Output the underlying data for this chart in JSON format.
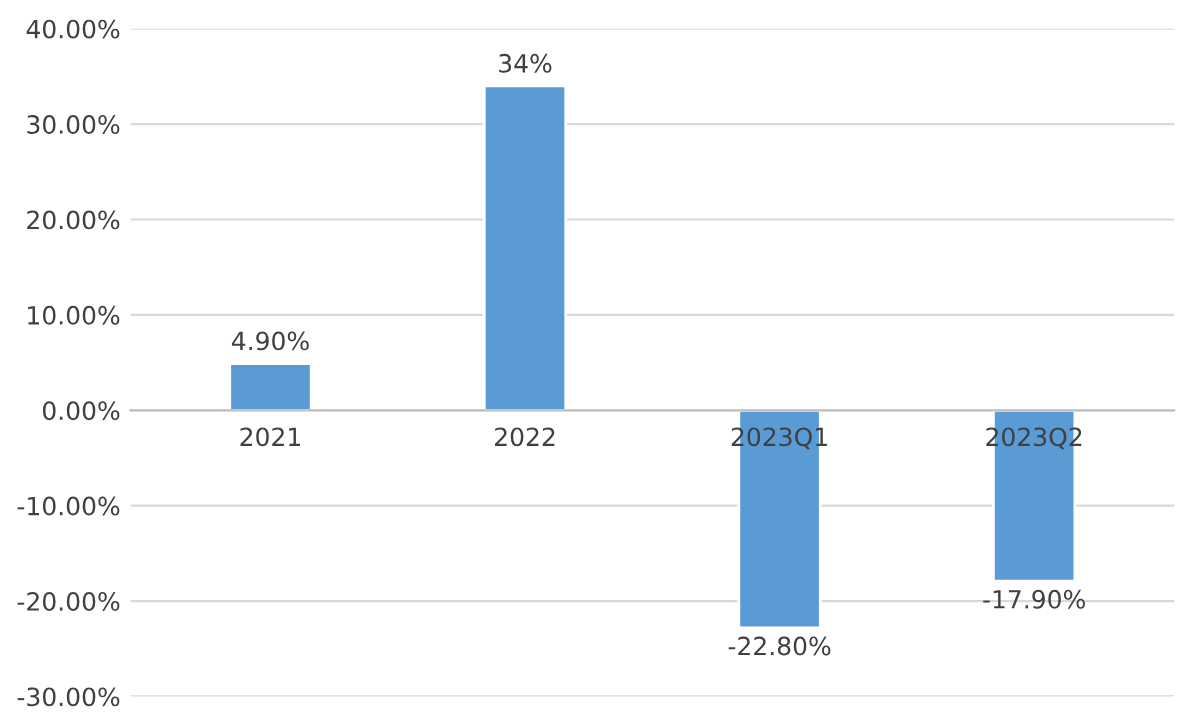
{
  "chart_data": {
    "type": "bar",
    "categories": [
      "2021",
      "2022",
      "2023Q1",
      "2023Q2"
    ],
    "values": [
      4.9,
      34,
      -22.8,
      -17.9
    ],
    "color": "#5b9bd5",
    "value_labels": [
      "4.90%",
      "34%",
      "-22.80%",
      "-17.90%"
    ],
    "ylim": [
      -30,
      40
    ],
    "yticks": [
      {
        "value": -30,
        "label": "-30.00%"
      },
      {
        "value": -20,
        "label": "-20.00%"
      },
      {
        "value": -10,
        "label": "-10.00%"
      },
      {
        "value": 0,
        "label": "0.00%"
      },
      {
        "value": 10,
        "label": "10.00%"
      },
      {
        "value": 20,
        "label": "20.00%"
      },
      {
        "value": 30,
        "label": "30.00%"
      },
      {
        "value": 40,
        "label": "40.00%"
      }
    ],
    "grid": "y"
  }
}
